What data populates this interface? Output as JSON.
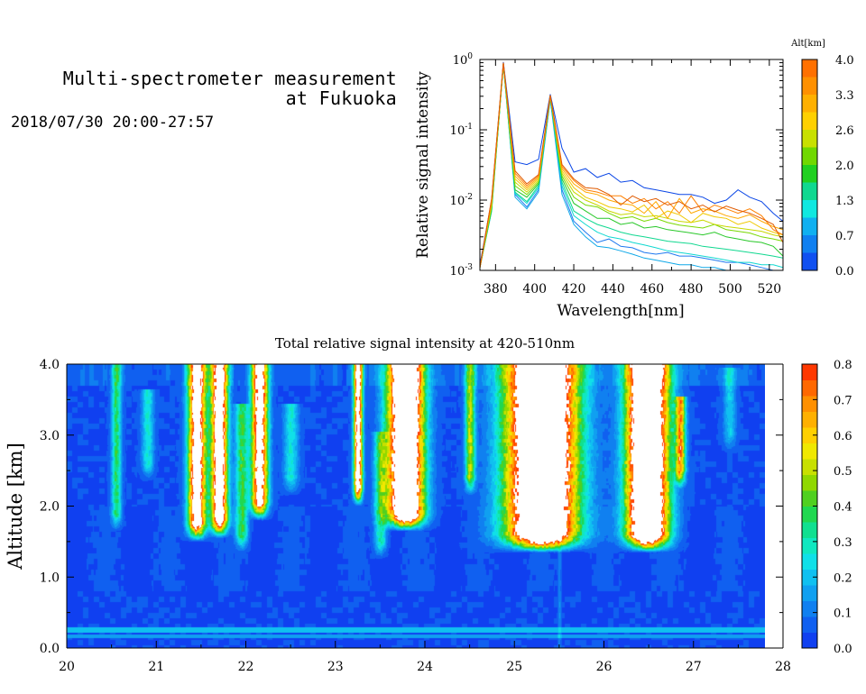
{
  "header": {
    "title": "Multi-spectrometer measurement\nat Fukuoka",
    "datetime": "2018/07/30 20:00-27:57"
  },
  "chart_data": [
    {
      "type": "line",
      "xlabel": "Wavelength[nm]",
      "ylabel": "Relative signal intensity",
      "yscale": "log",
      "xlim": [
        372,
        527
      ],
      "ylim": [
        0.001,
        1
      ],
      "x_ticks": [
        380,
        400,
        420,
        440,
        460,
        480,
        500,
        520
      ],
      "y_ticks": [
        {
          "value": 1,
          "label": "10",
          "exp": "0"
        },
        {
          "value": 0.1,
          "label": "10",
          "exp": "-1"
        },
        {
          "value": 0.01,
          "label": "10",
          "exp": "-2"
        },
        {
          "value": 0.001,
          "label": "10",
          "exp": "-3"
        }
      ],
      "x": [
        372,
        378,
        384,
        390,
        396,
        402,
        408,
        414,
        420,
        426,
        432,
        438,
        444,
        450,
        456,
        462,
        468,
        474,
        480,
        486,
        492,
        498,
        504,
        510,
        516,
        522,
        527
      ],
      "colorbar": {
        "title": "Alt[km]",
        "ticks": [
          "4.0",
          "3.3",
          "2.6",
          "2.0",
          "1.3",
          "0.7",
          "0.0"
        ],
        "colors": [
          "#ff7000",
          "#ff9000",
          "#ffb000",
          "#ffd000",
          "#c8e000",
          "#70d800",
          "#20d020",
          "#10d890",
          "#10e8e0",
          "#10b0f0",
          "#1080f0",
          "#1050f0"
        ]
      },
      "series": [
        {
          "color": "#0a46e6",
          "values": [
            0.0012,
            0.01,
            0.92,
            0.035,
            0.032,
            0.038,
            0.32,
            0.055,
            0.025,
            0.028,
            0.021,
            0.024,
            0.018,
            0.019,
            0.015,
            0.014,
            0.013,
            0.012,
            0.012,
            0.011,
            0.009,
            0.01,
            0.014,
            0.011,
            0.0095,
            0.0065,
            0.005
          ]
        },
        {
          "color": "#1e78f0",
          "values": [
            0.0011,
            0.008,
            0.85,
            0.012,
            0.008,
            0.014,
            0.28,
            0.014,
            0.005,
            0.0035,
            0.0025,
            0.0028,
            0.0022,
            0.0021,
            0.0018,
            0.0017,
            0.0018,
            0.0016,
            0.0016,
            0.0015,
            0.0014,
            0.0013,
            0.0013,
            0.0012,
            0.0011,
            0.001,
            0.001
          ]
        },
        {
          "color": "#10a8e8",
          "values": [
            0.0011,
            0.007,
            0.86,
            0.011,
            0.0075,
            0.013,
            0.27,
            0.012,
            0.0045,
            0.003,
            0.0022,
            0.0021,
            0.0019,
            0.0017,
            0.0015,
            0.0014,
            0.0013,
            0.0012,
            0.0012,
            0.0011,
            0.0011,
            0.001,
            0.001,
            0.001,
            0.001,
            0.001,
            0.001
          ]
        },
        {
          "color": "#10d8d0",
          "values": [
            0.0011,
            0.0075,
            0.85,
            0.0125,
            0.009,
            0.015,
            0.28,
            0.016,
            0.006,
            0.0045,
            0.0035,
            0.003,
            0.0028,
            0.0025,
            0.0023,
            0.0021,
            0.0019,
            0.0018,
            0.0017,
            0.0016,
            0.0015,
            0.0014,
            0.0013,
            0.0013,
            0.0012,
            0.0012,
            0.0011
          ]
        },
        {
          "color": "#10d890",
          "values": [
            0.0011,
            0.007,
            0.84,
            0.013,
            0.0095,
            0.016,
            0.29,
            0.018,
            0.007,
            0.0055,
            0.0045,
            0.004,
            0.0035,
            0.0032,
            0.003,
            0.0028,
            0.0026,
            0.0025,
            0.0024,
            0.0022,
            0.0021,
            0.002,
            0.0019,
            0.0018,
            0.0017,
            0.0016,
            0.0015
          ]
        },
        {
          "color": "#28c828",
          "values": [
            0.0011,
            0.0075,
            0.86,
            0.014,
            0.011,
            0.017,
            0.29,
            0.02,
            0.009,
            0.007,
            0.0055,
            0.0055,
            0.0045,
            0.0048,
            0.004,
            0.0042,
            0.0038,
            0.0036,
            0.0034,
            0.0032,
            0.0035,
            0.003,
            0.0028,
            0.0026,
            0.0025,
            0.0022,
            0.0016
          ]
        },
        {
          "color": "#78d800",
          "values": [
            0.0011,
            0.008,
            0.86,
            0.016,
            0.012,
            0.018,
            0.3,
            0.022,
            0.011,
            0.0085,
            0.008,
            0.0065,
            0.0055,
            0.0058,
            0.005,
            0.0055,
            0.0048,
            0.0044,
            0.0042,
            0.004,
            0.0045,
            0.0038,
            0.0036,
            0.0034,
            0.003,
            0.0028,
            0.0026
          ]
        },
        {
          "color": "#c8d800",
          "values": [
            0.0011,
            0.0085,
            0.87,
            0.018,
            0.013,
            0.019,
            0.3,
            0.024,
            0.013,
            0.01,
            0.0085,
            0.007,
            0.0062,
            0.0065,
            0.0058,
            0.006,
            0.0055,
            0.005,
            0.0048,
            0.0052,
            0.0045,
            0.0042,
            0.004,
            0.0038,
            0.0036,
            0.0032,
            0.003
          ]
        },
        {
          "color": "#f0c800",
          "values": [
            0.0011,
            0.009,
            0.88,
            0.02,
            0.014,
            0.02,
            0.3,
            0.026,
            0.015,
            0.011,
            0.0095,
            0.008,
            0.0075,
            0.0068,
            0.0085,
            0.0055,
            0.007,
            0.0062,
            0.0048,
            0.0065,
            0.0058,
            0.0055,
            0.0045,
            0.005,
            0.004,
            0.0035,
            0.0032
          ]
        },
        {
          "color": "#ffa800",
          "values": [
            0.0011,
            0.0095,
            0.88,
            0.022,
            0.015,
            0.021,
            0.3,
            0.028,
            0.017,
            0.013,
            0.012,
            0.01,
            0.009,
            0.0085,
            0.0065,
            0.0095,
            0.0055,
            0.0105,
            0.0065,
            0.0075,
            0.007,
            0.006,
            0.0055,
            0.0062,
            0.005,
            0.0042,
            0.0038
          ]
        },
        {
          "color": "#ff8000",
          "values": [
            0.0011,
            0.01,
            0.89,
            0.024,
            0.016,
            0.022,
            0.31,
            0.03,
            0.019,
            0.014,
            0.013,
            0.0115,
            0.0115,
            0.009,
            0.0105,
            0.0075,
            0.0095,
            0.0065,
            0.0115,
            0.0068,
            0.0085,
            0.0075,
            0.0065,
            0.0075,
            0.006,
            0.0038,
            0.0032
          ]
        },
        {
          "color": "#e05a00",
          "values": [
            0.0011,
            0.0105,
            0.9,
            0.026,
            0.017,
            0.023,
            0.31,
            0.032,
            0.02,
            0.015,
            0.0145,
            0.012,
            0.0085,
            0.0115,
            0.0095,
            0.0105,
            0.0085,
            0.0095,
            0.0075,
            0.0085,
            0.0068,
            0.0082,
            0.0072,
            0.0065,
            0.0055,
            0.0045,
            0.0025
          ]
        }
      ]
    },
    {
      "type": "heatmap",
      "title": "Total relative signal intensity at 420-510nm",
      "ylabel": "Altitude [km]",
      "xlim": [
        20,
        28
      ],
      "ylim": [
        0,
        4
      ],
      "data_x_end": 27.8,
      "x_ticks": [
        "20",
        "21",
        "22",
        "23",
        "24",
        "25",
        "26",
        "27",
        "28"
      ],
      "y_ticks": [
        "0.0",
        "1.0",
        "2.0",
        "3.0",
        "4.0"
      ],
      "colorbar": {
        "range": [
          0,
          0.8
        ],
        "ticks": [
          "0.8",
          "0.7",
          "0.6",
          "0.5",
          "0.4",
          "0.3",
          "0.2",
          "0.1",
          "0.0"
        ],
        "colors": [
          "#1040f0",
          "#1060f0",
          "#1080f0",
          "#10a0f0",
          "#10c0f0",
          "#10e0e8",
          "#10e8c0",
          "#10e090",
          "#20d850",
          "#50d020",
          "#90d800",
          "#c8e000",
          "#f0e800",
          "#ffd000",
          "#ffb000",
          "#ff9000",
          "#ff6800",
          "#ff3800"
        ]
      },
      "saturated_above": 0.8,
      "plumes": [
        {
          "t": 20.55,
          "w": 0.08,
          "ztop": 4.0,
          "zbot": 1.9,
          "v": 0.32
        },
        {
          "t": 20.9,
          "w": 0.1,
          "ztop": 3.6,
          "zbot": 2.6,
          "v": 0.22
        },
        {
          "t": 21.45,
          "w": 0.14,
          "ztop": 4.0,
          "zbot": 1.75,
          "v": 1.0
        },
        {
          "t": 21.7,
          "w": 0.13,
          "ztop": 4.0,
          "zbot": 1.8,
          "v": 1.05
        },
        {
          "t": 21.95,
          "w": 0.1,
          "ztop": 3.4,
          "zbot": 1.6,
          "v": 0.35
        },
        {
          "t": 22.15,
          "w": 0.13,
          "ztop": 4.0,
          "zbot": 2.05,
          "v": 0.95
        },
        {
          "t": 22.5,
          "w": 0.12,
          "ztop": 3.4,
          "zbot": 2.4,
          "v": 0.22
        },
        {
          "t": 23.25,
          "w": 0.07,
          "ztop": 4.0,
          "zbot": 2.25,
          "v": 0.95
        },
        {
          "t": 23.5,
          "w": 0.1,
          "ztop": 3.0,
          "zbot": 1.5,
          "v": 0.28
        },
        {
          "t": 23.78,
          "w": 0.28,
          "ztop": 4.0,
          "zbot": 1.9,
          "v": 1.3
        },
        {
          "t": 24.5,
          "w": 0.08,
          "ztop": 4.0,
          "zbot": 2.4,
          "v": 0.45
        },
        {
          "t": 25.3,
          "w": 0.55,
          "ztop": 4.0,
          "zbot": 1.6,
          "v": 1.4
        },
        {
          "t": 26.48,
          "w": 0.32,
          "ztop": 4.0,
          "zbot": 1.6,
          "v": 1.4
        },
        {
          "t": 26.85,
          "w": 0.08,
          "ztop": 3.5,
          "zbot": 2.5,
          "v": 0.6
        },
        {
          "t": 27.4,
          "w": 0.1,
          "ztop": 3.9,
          "zbot": 3.0,
          "v": 0.18
        }
      ]
    }
  ]
}
